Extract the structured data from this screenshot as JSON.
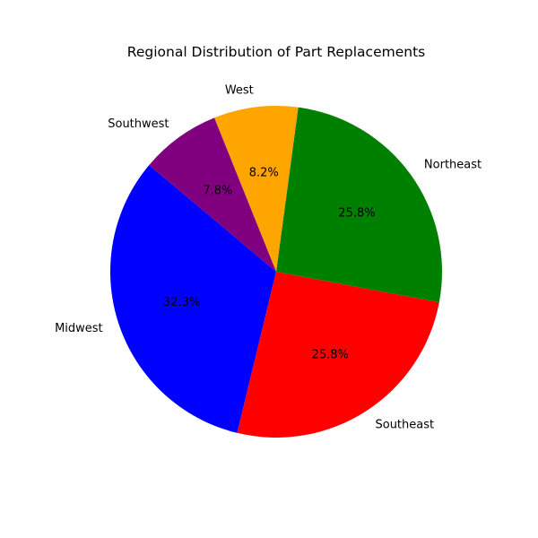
{
  "chart_data": {
    "type": "pie",
    "title": "Regional Distribution of Part Replacements",
    "start_angle_deg": 140,
    "direction": "counterclockwise",
    "slices": [
      {
        "label": "Midwest",
        "value": 32.3,
        "pct_label": "32.3%",
        "color": "#0000ff"
      },
      {
        "label": "Southeast",
        "value": 25.8,
        "pct_label": "25.8%",
        "color": "#ff0000"
      },
      {
        "label": "Northeast",
        "value": 25.8,
        "pct_label": "25.8%",
        "color": "#008000"
      },
      {
        "label": "West",
        "value": 8.2,
        "pct_label": "8.2%",
        "color": "#ffa500"
      },
      {
        "label": "Southwest",
        "value": 7.8,
        "pct_label": "7.8%",
        "color": "#800080"
      }
    ]
  }
}
